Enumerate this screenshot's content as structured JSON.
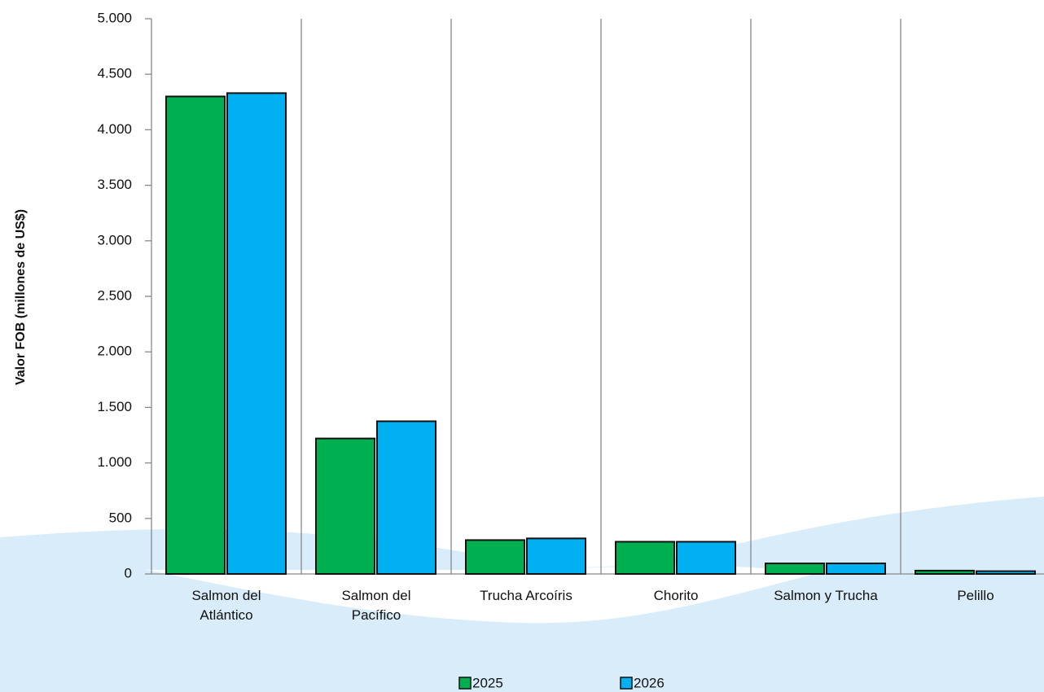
{
  "chart_data": {
    "type": "bar",
    "y_label": "Valor FOB (millones de US$)",
    "categories": [
      "Salmon del\nAtlántico",
      "Salmon del\nPacífico",
      "Trucha Arcoíris",
      "Chorito",
      "Salmon y Trucha",
      "Pelillo"
    ],
    "series": [
      {
        "name": "2025",
        "color": "#00b050",
        "values": [
          4300,
          1220,
          305,
          290,
          95,
          30
        ]
      },
      {
        "name": "2026",
        "color": "#00b0f0",
        "values": [
          4330,
          1375,
          320,
          290,
          95,
          25
        ]
      }
    ],
    "ylim": [
      0,
      5000
    ],
    "yticks": [
      0,
      {
        "value": 500,
        "label": "500"
      },
      {
        "value": 1000,
        "label": "1.000"
      },
      {
        "value": 1500,
        "label": "1.500"
      },
      {
        "value": 2000,
        "label": "2.000"
      },
      {
        "value": 2500,
        "label": "2.500"
      },
      {
        "value": 3000,
        "label": "3.000"
      },
      {
        "value": 3500,
        "label": "3.500"
      },
      {
        "value": 4000,
        "label": "4.000"
      },
      {
        "value": 4500,
        "label": "4.500"
      },
      {
        "value": 5000,
        "label": "5.000"
      }
    ],
    "legend": "bottom"
  }
}
